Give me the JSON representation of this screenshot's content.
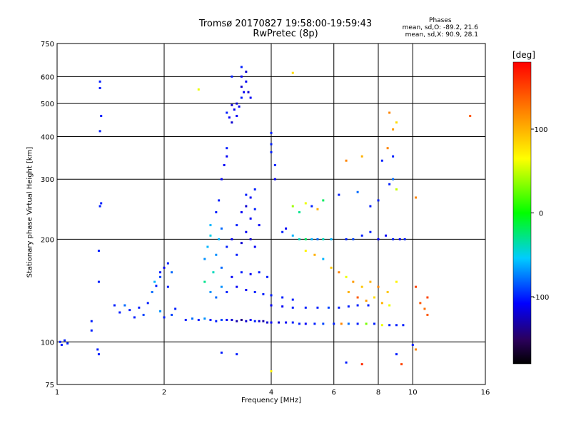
{
  "chart_data": {
    "type": "scatter",
    "title": "Tromsø 20170827 19:58:00-19:59:43",
    "subtitle": "RwPretec (8p)",
    "xlabel": "Frequency [MHz]",
    "ylabel": "Stationary phase Virtual Height [km]",
    "x_scale": "log",
    "y_scale": "log",
    "xlim": [
      1,
      16
    ],
    "ylim": [
      75,
      750
    ],
    "x_ticks": [
      1,
      2,
      4,
      6,
      8,
      10,
      16
    ],
    "x_tick_labels": [
      "1",
      "2",
      "4",
      "6",
      "8",
      "10",
      "16"
    ],
    "y_ticks": [
      75,
      100,
      200,
      300,
      400,
      500,
      600,
      750
    ],
    "y_tick_labels": [
      "75",
      "100",
      "200",
      "300",
      "400",
      "500",
      "600",
      "750"
    ],
    "grid": true,
    "stats": {
      "header": "Phases",
      "line1": "mean, sd,O: -89.2, 21.6",
      "line2": "mean, sd,X:  90.9, 28.1"
    },
    "colorbar": {
      "label": "[deg]",
      "range": [
        -180,
        180
      ],
      "ticks": [
        100,
        0,
        -100
      ],
      "tick_labels": [
        "100",
        "0",
        "-100"
      ],
      "colormap": "rainbow"
    },
    "series": [
      {
        "points": [
          [
            1.02,
            100,
            -100
          ],
          [
            1.05,
            101,
            -100
          ],
          [
            1.07,
            99,
            -100
          ],
          [
            1.03,
            98,
            -100
          ],
          [
            1.32,
            580,
            -100
          ],
          [
            1.32,
            555,
            -100
          ],
          [
            1.33,
            460,
            -100
          ],
          [
            1.32,
            415,
            -100
          ],
          [
            1.33,
            255,
            -100
          ],
          [
            1.32,
            250,
            -100
          ],
          [
            1.31,
            185,
            -100
          ],
          [
            1.31,
            150,
            -100
          ],
          [
            1.25,
            115,
            -100
          ],
          [
            1.25,
            108,
            -100
          ],
          [
            1.3,
            95,
            -100
          ],
          [
            1.31,
            92,
            -100
          ],
          [
            1.45,
            128,
            -100
          ],
          [
            1.5,
            122,
            -100
          ],
          [
            1.55,
            128,
            -80
          ],
          [
            1.6,
            124,
            -100
          ],
          [
            1.65,
            118,
            -100
          ],
          [
            1.7,
            126,
            -100
          ],
          [
            1.75,
            120,
            -90
          ],
          [
            1.8,
            130,
            -100
          ],
          [
            1.85,
            140,
            -80
          ],
          [
            1.88,
            150,
            -60
          ],
          [
            1.9,
            146,
            -100
          ],
          [
            1.95,
            160,
            -100
          ],
          [
            1.95,
            155,
            -90
          ],
          [
            2.0,
            165,
            -110
          ],
          [
            2.05,
            170,
            -100
          ],
          [
            2.1,
            160,
            -80
          ],
          [
            2.05,
            145,
            -100
          ],
          [
            1.95,
            123,
            -70
          ],
          [
            2.0,
            118,
            -100
          ],
          [
            2.1,
            120,
            -90
          ],
          [
            2.15,
            125,
            -100
          ],
          [
            2.3,
            116,
            -100
          ],
          [
            2.4,
            117,
            -80
          ],
          [
            2.5,
            116,
            -100
          ],
          [
            2.6,
            117,
            -70
          ],
          [
            2.7,
            116,
            -100
          ],
          [
            2.8,
            115,
            -100
          ],
          [
            2.9,
            116,
            -90
          ],
          [
            3.0,
            116,
            -110
          ],
          [
            3.1,
            116,
            -120
          ],
          [
            3.2,
            115,
            -130
          ],
          [
            3.3,
            116,
            -140
          ],
          [
            3.4,
            115,
            -120
          ],
          [
            3.5,
            116,
            -110
          ],
          [
            3.6,
            115,
            -100
          ],
          [
            3.7,
            115,
            -120
          ],
          [
            3.8,
            115,
            -130
          ],
          [
            3.9,
            114,
            -120
          ],
          [
            4.0,
            114,
            -110
          ],
          [
            4.2,
            114,
            -120
          ],
          [
            4.4,
            114,
            -110
          ],
          [
            4.6,
            114,
            -100
          ],
          [
            4.8,
            113,
            -100
          ],
          [
            5.0,
            113,
            -110
          ],
          [
            5.3,
            113,
            -100
          ],
          [
            5.6,
            113,
            -90
          ],
          [
            6.0,
            113,
            -100
          ],
          [
            6.3,
            113,
            120
          ],
          [
            6.6,
            113,
            -80
          ],
          [
            7.0,
            113,
            -100
          ],
          [
            7.4,
            113,
            30
          ],
          [
            7.8,
            113,
            -100
          ],
          [
            8.2,
            112,
            60
          ],
          [
            8.6,
            112,
            -100
          ],
          [
            9.0,
            112,
            -100
          ],
          [
            9.4,
            112,
            -100
          ],
          [
            2.6,
            175,
            -70
          ],
          [
            2.65,
            190,
            -60
          ],
          [
            2.7,
            205,
            -50
          ],
          [
            2.7,
            220,
            -60
          ],
          [
            2.75,
            160,
            -40
          ],
          [
            2.8,
            180,
            -70
          ],
          [
            2.85,
            200,
            -60
          ],
          [
            2.9,
            215,
            -80
          ],
          [
            2.6,
            150,
            -30
          ],
          [
            2.7,
            140,
            -70
          ],
          [
            2.8,
            135,
            -80
          ],
          [
            2.9,
            145,
            -70
          ],
          [
            2.9,
            165,
            -80
          ],
          [
            2.8,
            240,
            -100
          ],
          [
            2.85,
            260,
            -100
          ],
          [
            2.9,
            300,
            -110
          ],
          [
            2.95,
            330,
            -110
          ],
          [
            3.0,
            350,
            -110
          ],
          [
            3.0,
            370,
            -100
          ],
          [
            3.0,
            190,
            -100
          ],
          [
            3.1,
            200,
            -110
          ],
          [
            3.2,
            180,
            -100
          ],
          [
            3.3,
            195,
            -120
          ],
          [
            3.4,
            210,
            -110
          ],
          [
            3.5,
            200,
            -120
          ],
          [
            3.6,
            190,
            -110
          ],
          [
            3.2,
            220,
            -100
          ],
          [
            3.3,
            240,
            -110
          ],
          [
            3.4,
            250,
            -120
          ],
          [
            3.5,
            230,
            -110
          ],
          [
            3.6,
            245,
            -100
          ],
          [
            3.7,
            220,
            -110
          ],
          [
            3.4,
            270,
            -100
          ],
          [
            3.5,
            265,
            -110
          ],
          [
            3.6,
            280,
            -100
          ],
          [
            3.0,
            140,
            -100
          ],
          [
            3.2,
            145,
            -110
          ],
          [
            3.4,
            142,
            -110
          ],
          [
            3.6,
            140,
            -100
          ],
          [
            3.8,
            138,
            -100
          ],
          [
            4.0,
            137,
            -100
          ],
          [
            4.3,
            135,
            -100
          ],
          [
            4.6,
            133,
            -100
          ],
          [
            3.1,
            155,
            -110
          ],
          [
            3.3,
            160,
            -100
          ],
          [
            3.5,
            158,
            -110
          ],
          [
            3.7,
            160,
            -100
          ],
          [
            3.9,
            155,
            -100
          ],
          [
            4.0,
            128,
            -110
          ],
          [
            4.3,
            127,
            -110
          ],
          [
            4.6,
            126,
            -100
          ],
          [
            5.0,
            126,
            -100
          ],
          [
            5.4,
            126,
            -100
          ],
          [
            5.8,
            126,
            -90
          ],
          [
            6.2,
            126,
            -100
          ],
          [
            6.6,
            127,
            -100
          ],
          [
            7.0,
            128,
            -100
          ],
          [
            7.5,
            128,
            -100
          ],
          [
            3.0,
            470,
            -100
          ],
          [
            3.05,
            455,
            -110
          ],
          [
            3.1,
            440,
            -120
          ],
          [
            3.15,
            480,
            -110
          ],
          [
            3.2,
            500,
            -120
          ],
          [
            3.25,
            490,
            -110
          ],
          [
            3.3,
            520,
            -100
          ],
          [
            3.35,
            540,
            -110
          ],
          [
            3.3,
            560,
            -120
          ],
          [
            3.3,
            600,
            -110
          ],
          [
            3.3,
            640,
            -100
          ],
          [
            3.4,
            620,
            -120
          ],
          [
            3.4,
            580,
            -110
          ],
          [
            3.45,
            540,
            -120
          ],
          [
            3.5,
            520,
            -110
          ],
          [
            3.2,
            460,
            -110
          ],
          [
            3.1,
            495,
            -120
          ],
          [
            3.1,
            600,
            -100
          ],
          [
            2.5,
            550,
            60
          ],
          [
            4.6,
            615,
            80
          ],
          [
            4.0,
            410,
            -100
          ],
          [
            4.0,
            380,
            -100
          ],
          [
            4.0,
            360,
            -100
          ],
          [
            4.1,
            330,
            -100
          ],
          [
            4.1,
            300,
            -110
          ],
          [
            4.3,
            210,
            -100
          ],
          [
            4.4,
            215,
            -110
          ],
          [
            4.6,
            205,
            -60
          ],
          [
            4.8,
            200,
            -40
          ],
          [
            5.0,
            200,
            -20
          ],
          [
            5.2,
            200,
            -60
          ],
          [
            5.4,
            200,
            -80
          ],
          [
            5.6,
            200,
            -40
          ],
          [
            5.9,
            200,
            -60
          ],
          [
            4.6,
            250,
            40
          ],
          [
            4.8,
            240,
            -30
          ],
          [
            5.0,
            255,
            60
          ],
          [
            5.2,
            250,
            -100
          ],
          [
            5.4,
            245,
            100
          ],
          [
            5.6,
            260,
            -20
          ],
          [
            5.0,
            185,
            70
          ],
          [
            5.3,
            180,
            100
          ],
          [
            5.6,
            175,
            -60
          ],
          [
            5.9,
            165,
            90
          ],
          [
            6.2,
            160,
            120
          ],
          [
            6.5,
            155,
            60
          ],
          [
            6.8,
            150,
            110
          ],
          [
            7.2,
            145,
            90
          ],
          [
            7.6,
            150,
            100
          ],
          [
            8.0,
            145,
            120
          ],
          [
            8.5,
            140,
            90
          ],
          [
            9.0,
            150,
            70
          ],
          [
            6.6,
            140,
            100
          ],
          [
            7.0,
            135,
            140
          ],
          [
            7.4,
            132,
            110
          ],
          [
            7.8,
            135,
            80
          ],
          [
            8.2,
            130,
            100
          ],
          [
            8.6,
            128,
            60
          ],
          [
            6.5,
            200,
            -100
          ],
          [
            6.8,
            200,
            -90
          ],
          [
            7.2,
            205,
            -100
          ],
          [
            7.6,
            210,
            -100
          ],
          [
            8.0,
            200,
            -110
          ],
          [
            8.4,
            205,
            -110
          ],
          [
            8.8,
            200,
            -100
          ],
          [
            9.2,
            200,
            -110
          ],
          [
            9.5,
            200,
            -100
          ],
          [
            6.2,
            270,
            -100
          ],
          [
            7.0,
            275,
            -80
          ],
          [
            7.6,
            250,
            -100
          ],
          [
            8.0,
            260,
            -100
          ],
          [
            8.6,
            290,
            -100
          ],
          [
            8.8,
            300,
            -80
          ],
          [
            9.0,
            280,
            50
          ],
          [
            6.5,
            340,
            120
          ],
          [
            7.2,
            350,
            100
          ],
          [
            8.2,
            340,
            -100
          ],
          [
            8.5,
            370,
            120
          ],
          [
            8.8,
            350,
            -100
          ],
          [
            8.6,
            470,
            120
          ],
          [
            9.0,
            440,
            80
          ],
          [
            8.8,
            420,
            110
          ],
          [
            14.5,
            460,
            140
          ],
          [
            10.2,
            265,
            120
          ],
          [
            10.5,
            130,
            140
          ],
          [
            10.2,
            145,
            150
          ],
          [
            10.8,
            125,
            130
          ],
          [
            11.0,
            135,
            150
          ],
          [
            11.0,
            120,
            140
          ],
          [
            10.0,
            98,
            -100
          ],
          [
            10.2,
            95,
            120
          ],
          [
            9.0,
            92,
            -100
          ],
          [
            9.3,
            86,
            150
          ],
          [
            7.2,
            86,
            160
          ],
          [
            6.5,
            87,
            -100
          ],
          [
            4.0,
            82,
            70
          ],
          [
            2.9,
            93,
            -100
          ],
          [
            3.2,
            92,
            -100
          ]
        ]
      }
    ]
  }
}
